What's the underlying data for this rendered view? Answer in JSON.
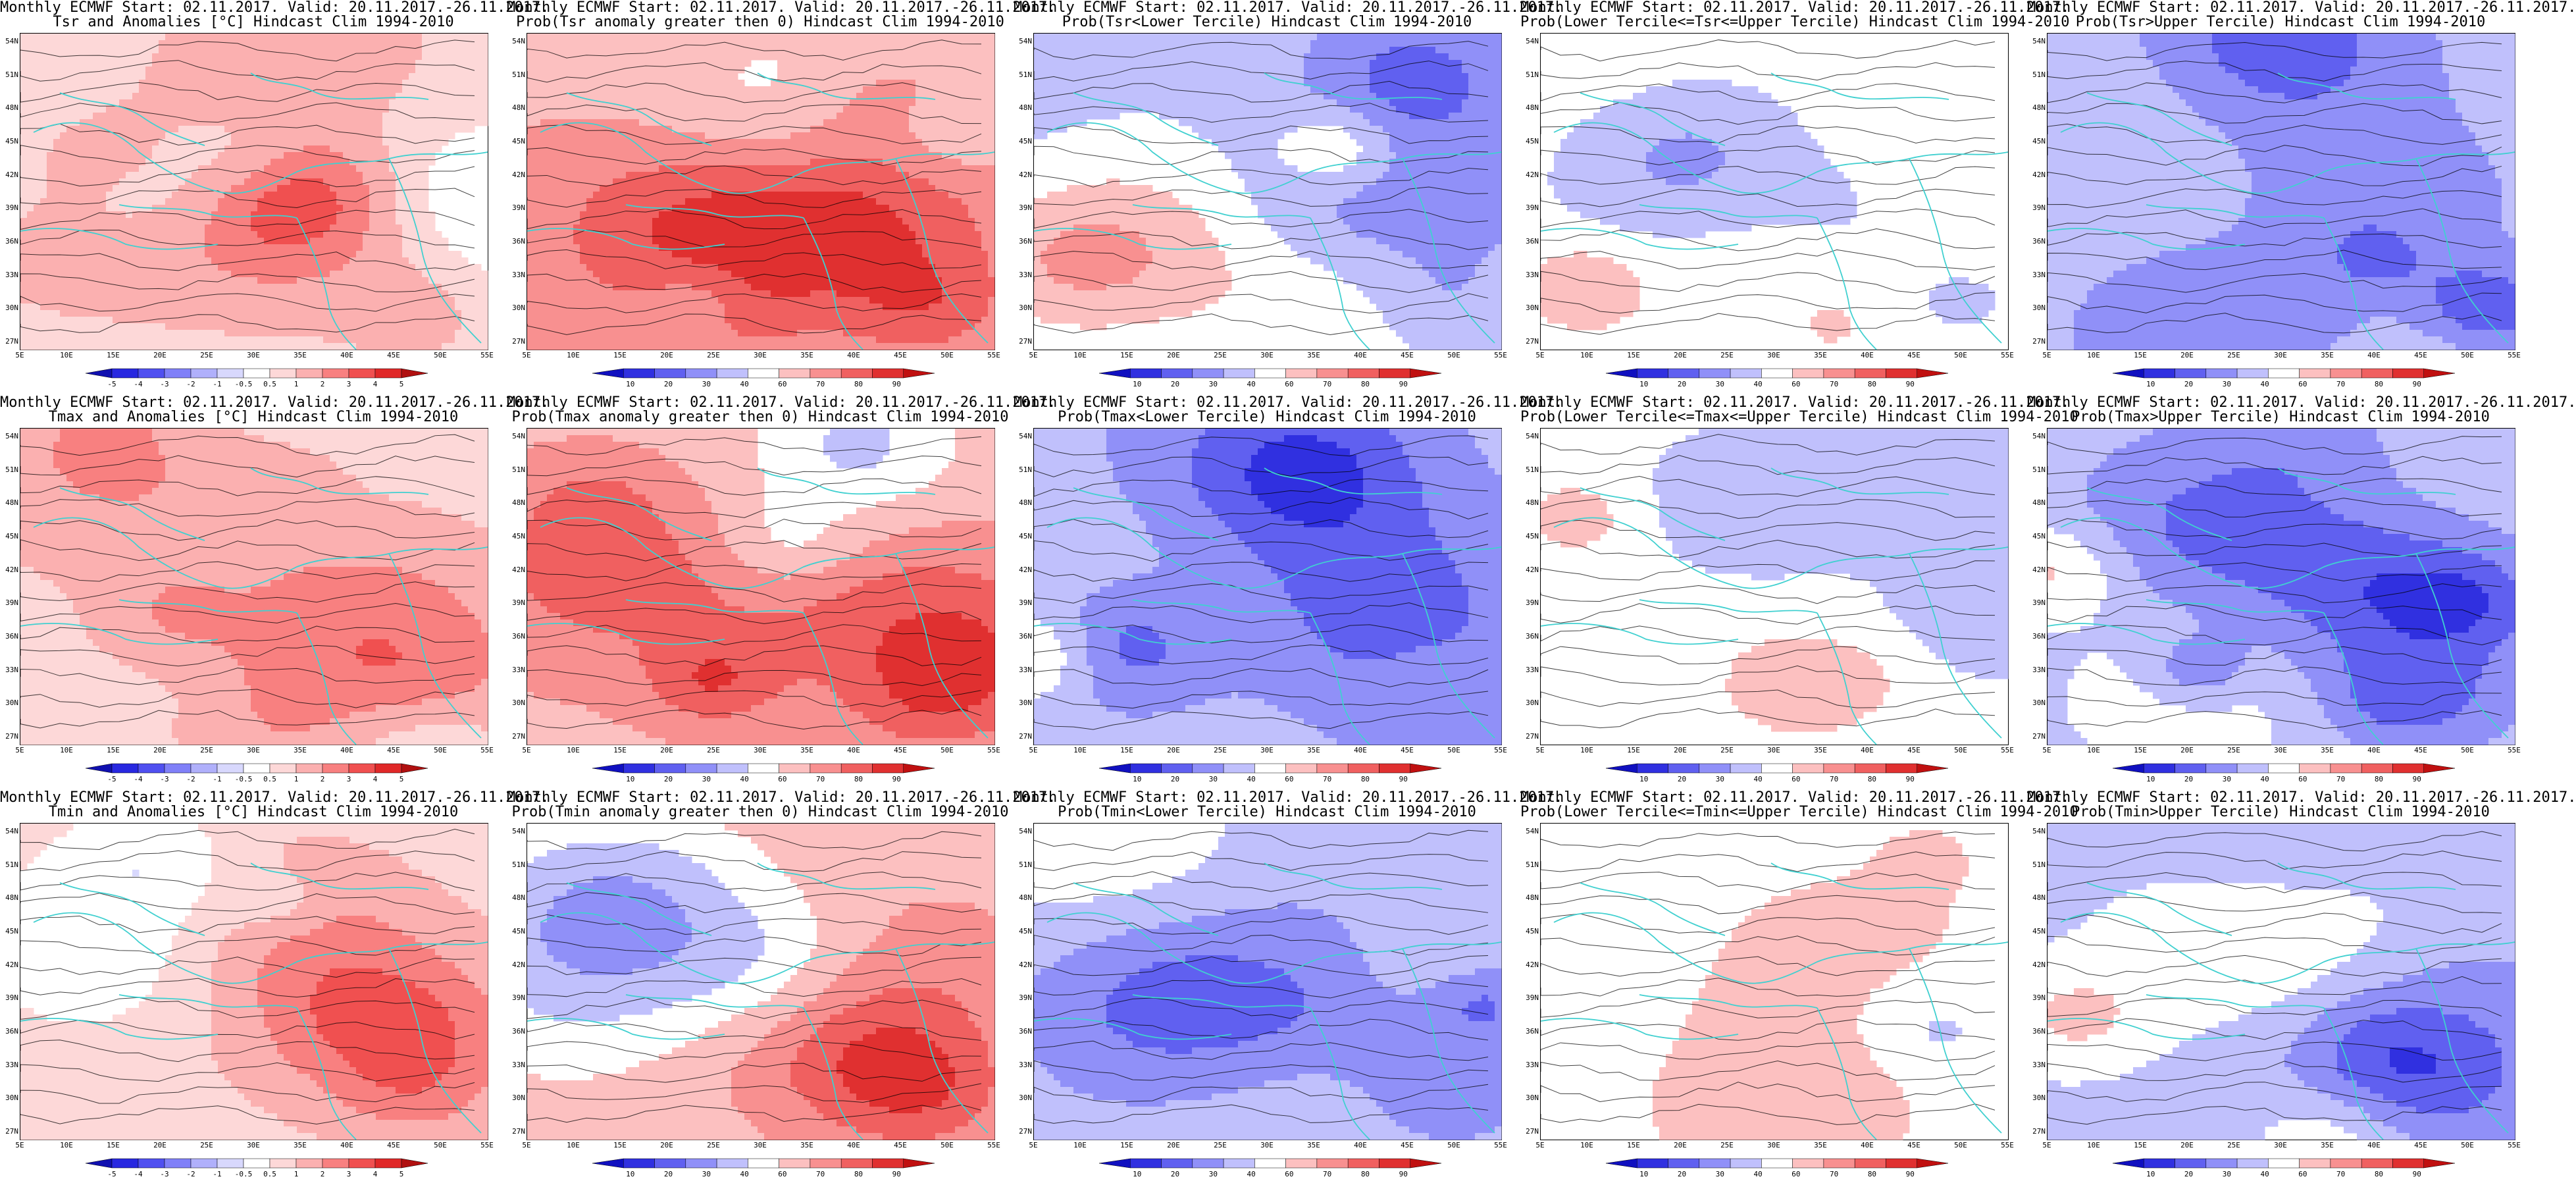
{
  "figure": {
    "columns": 5,
    "rows": 3,
    "lat_ticks": [
      "54N",
      "51N",
      "48N",
      "45N",
      "42N",
      "39N",
      "36N",
      "33N",
      "30N",
      "27N"
    ],
    "lon_ticks": [
      "5E",
      "10E",
      "15E",
      "20E",
      "25E",
      "30E",
      "35E",
      "40E",
      "45E",
      "50E",
      "55E"
    ],
    "colors": {
      "coast": "#40d0d0",
      "contour": "#000000",
      "anomaly_scale": [
        "#1010b0",
        "#2828e0",
        "#5050f0",
        "#8080f8",
        "#b0b0fb",
        "#d8d8fd",
        "#ffffff",
        "#fdd8d8",
        "#fbb0b0",
        "#f88080",
        "#f05050",
        "#e02828",
        "#b01010"
      ],
      "prob_scale": [
        "#1010c0",
        "#3030e0",
        "#6060f0",
        "#9090f8",
        "#c0c0fc",
        "#ffffff",
        "#fcc0c0",
        "#f89090",
        "#f06060",
        "#e03030",
        "#c01010"
      ]
    }
  },
  "colorbars": {
    "anomaly": [
      "-5",
      "-4",
      "-3",
      "-2",
      "-1",
      "-0.5",
      "0.5",
      "1",
      "2",
      "3",
      "4",
      "5"
    ],
    "prob": [
      "10",
      "20",
      "30",
      "40",
      "60",
      "70",
      "80",
      "90"
    ]
  },
  "panels": [
    {
      "title1": "Monthly ECMWF Start: 02.11.2017. Valid: 20.11.2017.-26.11.2017.",
      "title2": "Tsr and Anomalies [°C] Hindcast Clim 1994-2010",
      "scale": "anomaly",
      "bias": 0.55,
      "intensity": 0.7
    },
    {
      "title1": "Monthly ECMWF Start: 02.11.2017. Valid: 20.11.2017.-26.11.2017.",
      "title2": "Prob(Tsr anomaly greater then 0) Hindcast Clim 1994-2010",
      "scale": "prob",
      "bias": 0.62,
      "intensity": 0.85
    },
    {
      "title1": "Monthly ECMWF Start: 02.11.2017. Valid: 20.11.2017.-26.11.2017.",
      "title2": "Prob(Tsr<Lower Tercile) Hindcast Clim 1994-2010",
      "scale": "prob",
      "bias": 0.22,
      "intensity": 0.9
    },
    {
      "title1": "Monthly ECMWF Start: 02.11.2017. Valid: 20.11.2017.-26.11.2017.",
      "title2": "Prob(Lower Tercile<=Tsr<=Upper Tercile) Hindcast Clim 1994-2010",
      "scale": "prob",
      "bias": 0.4,
      "intensity": 0.55
    },
    {
      "title1": "Monthly ECMWF Start: 02.11.2017. Valid: 20.11.2017.-26.11.2017.",
      "title2": "Prob(Tsr>Upper Tercile) Hindcast Clim 1994-2010",
      "scale": "prob",
      "bias": 0.25,
      "intensity": 0.85
    },
    {
      "title1": "Monthly ECMWF Start: 02.11.2017. Valid: 20.11.2017.-26.11.2017.",
      "title2": "Tmax and Anomalies [°C] Hindcast Clim 1994-2010",
      "scale": "anomaly",
      "bias": 0.55,
      "intensity": 0.65
    },
    {
      "title1": "Monthly ECMWF Start: 02.11.2017. Valid: 20.11.2017.-26.11.2017.",
      "title2": "Prob(Tmax anomaly greater then 0) Hindcast Clim 1994-2010",
      "scale": "prob",
      "bias": 0.6,
      "intensity": 0.8
    },
    {
      "title1": "Monthly ECMWF Start: 02.11.2017. Valid: 20.11.2017.-26.11.2017.",
      "title2": "Prob(Tmax<Lower Tercile) Hindcast Clim 1994-2010",
      "scale": "prob",
      "bias": 0.22,
      "intensity": 0.9
    },
    {
      "title1": "Monthly ECMWF Start: 02.11.2017. Valid: 20.11.2017.-26.11.2017.",
      "title2": "Prob(Lower Tercile<=Tmax<=Upper Tercile) Hindcast Clim 1994-2010",
      "scale": "prob",
      "bias": 0.4,
      "intensity": 0.55
    },
    {
      "title1": "Monthly ECMWF Start: 02.11.2017. Valid: 20.11.2017.-26.11.2017.",
      "title2": "Prob(Tmax>Upper Tercile) Hindcast Clim 1994-2010",
      "scale": "prob",
      "bias": 0.25,
      "intensity": 0.85
    },
    {
      "title1": "Monthly ECMWF Start: 02.11.2017. Valid: 20.11.2017.-26.11.2017.",
      "title2": "Tmin and Anomalies [°C] Hindcast Clim 1994-2010",
      "scale": "anomaly",
      "bias": 0.55,
      "intensity": 0.7
    },
    {
      "title1": "Monthly ECMWF Start: 02.11.2017. Valid: 20.11.2017.-26.11.2017.",
      "title2": "Prob(Tmin anomaly greater then 0) Hindcast Clim 1994-2010",
      "scale": "prob",
      "bias": 0.6,
      "intensity": 0.85
    },
    {
      "title1": "Monthly ECMWF Start: 02.11.2017. Valid: 20.11.2017.-26.11.2017.",
      "title2": "Prob(Tmin<Lower Tercile) Hindcast Clim 1994-2010",
      "scale": "prob",
      "bias": 0.22,
      "intensity": 0.9
    },
    {
      "title1": "Monthly ECMWF Start: 02.11.2017. Valid: 20.11.2017.-26.11.2017.",
      "title2": "Prob(Lower Tercile<=Tmin<=Upper Tercile) Hindcast Clim 1994-2010",
      "scale": "prob",
      "bias": 0.4,
      "intensity": 0.55
    },
    {
      "title1": "Monthly ECMWF Start: 02.11.2017. Valid: 20.11.2017.-26.11.2017.",
      "title2": "Prob(Tmin>Upper Tercile) Hindcast Clim 1994-2010",
      "scale": "prob",
      "bias": 0.25,
      "intensity": 0.85
    }
  ]
}
